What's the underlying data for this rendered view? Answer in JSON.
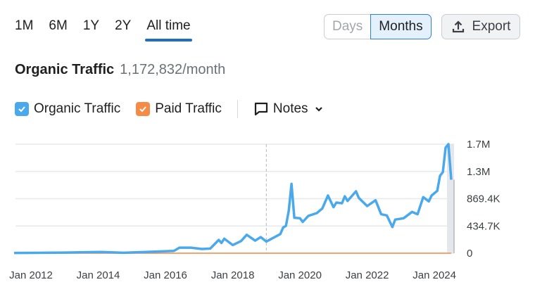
{
  "range_tabs": [
    {
      "label": "1M"
    },
    {
      "label": "6M"
    },
    {
      "label": "1Y"
    },
    {
      "label": "2Y"
    },
    {
      "label": "All time",
      "active": true
    }
  ],
  "granularity": {
    "days_label": "Days",
    "months_label": "Months",
    "selected": "Months"
  },
  "export": {
    "label": "Export",
    "icon": "upload-icon"
  },
  "header": {
    "title": "Organic Traffic",
    "value": "1,172,832/month"
  },
  "legend": {
    "organic_label": "Organic Traffic",
    "paid_label": "Paid Traffic",
    "notes_label": "Notes",
    "organic_checked": true,
    "paid_checked": true
  },
  "colors": {
    "organic": "#4aa8ec",
    "paid": "#f58b46",
    "accent": "#1e6fc4"
  },
  "chart_data": {
    "type": "line",
    "title": "",
    "xlabel": "",
    "ylabel": "",
    "ylim": [
      0,
      1739000
    ],
    "grid": true,
    "x_tick_labels": [
      "Jan 2012",
      "Jan 2014",
      "Jan 2016",
      "Jan 2018",
      "Jan 2020",
      "Jan 2022",
      "Jan 2024"
    ],
    "y_tick_labels": [
      "0",
      "434.7K",
      "869.4K",
      "1.3M",
      "1.7M"
    ],
    "y_ticks": [
      0,
      434700,
      869400,
      1304000,
      1739000
    ],
    "note_marker_date": "2019-01",
    "series": [
      {
        "name": "Organic Traffic",
        "color": "#4aa8ec",
        "points": [
          [
            "2011-07",
            5000
          ],
          [
            "2012-01",
            6000
          ],
          [
            "2013-01",
            10000
          ],
          [
            "2014-02",
            19000
          ],
          [
            "2014-10",
            7000
          ],
          [
            "2015-06",
            20000
          ],
          [
            "2016-04",
            37000
          ],
          [
            "2016-06",
            89000
          ],
          [
            "2016-10",
            89000
          ],
          [
            "2017-02",
            67000
          ],
          [
            "2017-05",
            74000
          ],
          [
            "2017-08",
            212000
          ],
          [
            "2017-09",
            164000
          ],
          [
            "2017-10",
            231000
          ],
          [
            "2018-01",
            130000
          ],
          [
            "2018-04",
            194000
          ],
          [
            "2018-06",
            294000
          ],
          [
            "2018-09",
            201000
          ],
          [
            "2018-11",
            257000
          ],
          [
            "2019-01",
            186000
          ],
          [
            "2019-06",
            305000
          ],
          [
            "2019-07",
            410000
          ],
          [
            "2019-08",
            436000
          ],
          [
            "2019-09",
            678000
          ],
          [
            "2019-10",
            1106000
          ],
          [
            "2019-11",
            566000
          ],
          [
            "2020-01",
            558000
          ],
          [
            "2020-02",
            499000
          ],
          [
            "2020-04",
            596000
          ],
          [
            "2020-07",
            640000
          ],
          [
            "2020-09",
            715000
          ],
          [
            "2020-11",
            920000
          ],
          [
            "2021-01",
            734000
          ],
          [
            "2021-02",
            808000
          ],
          [
            "2021-04",
            797000
          ],
          [
            "2021-05",
            908000
          ],
          [
            "2021-06",
            834000
          ],
          [
            "2021-09",
            987000
          ],
          [
            "2021-10",
            882000
          ],
          [
            "2022-01",
            752000
          ],
          [
            "2022-04",
            845000
          ],
          [
            "2022-06",
            622000
          ],
          [
            "2022-08",
            603000
          ],
          [
            "2022-10",
            417000
          ],
          [
            "2022-11",
            536000
          ],
          [
            "2023-02",
            558000
          ],
          [
            "2023-05",
            659000
          ],
          [
            "2023-07",
            622000
          ],
          [
            "2023-09",
            894000
          ],
          [
            "2023-11",
            827000
          ],
          [
            "2023-12",
            920000
          ],
          [
            "2024-02",
            994000
          ],
          [
            "2024-03",
            1236000
          ],
          [
            "2024-04",
            1292000
          ],
          [
            "2024-05",
            1684000
          ],
          [
            "2024-06",
            1739000
          ],
          [
            "2024-07",
            1172832
          ]
        ]
      },
      {
        "name": "Paid Traffic",
        "color": "#f58b46",
        "points": [
          [
            "2011-07",
            0
          ],
          [
            "2024-07",
            0
          ]
        ]
      }
    ]
  }
}
